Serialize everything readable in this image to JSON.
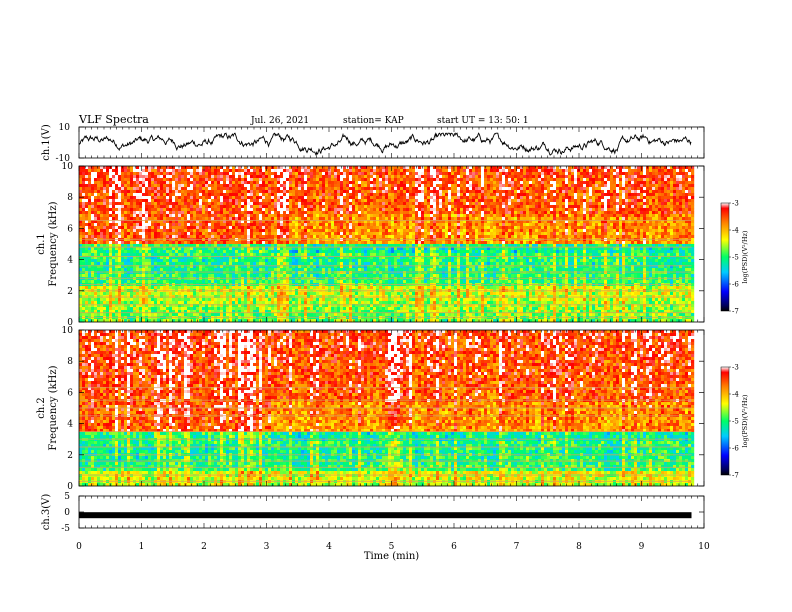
{
  "header": {
    "title": "VLF Spectra",
    "date": "Jul. 26, 2021",
    "station": "station= KAP",
    "start": "start UT =  13: 50: 1"
  },
  "chart_data": [
    {
      "type": "line",
      "panel": "ch1-waveform",
      "ylabel": "ch.1(V)",
      "ylim": [
        -10,
        10
      ],
      "yticks": [
        "10",
        "-10"
      ],
      "xlim": [
        0,
        10
      ],
      "data_extent_min": [
        0,
        9.8
      ],
      "amplitude_range_V": [
        -8,
        6
      ]
    },
    {
      "type": "heatmap",
      "panel": "ch1-spectrogram",
      "ylabel": "ch.1",
      "ylabel2": "Frequency (kHz)",
      "ylim": [
        0,
        10
      ],
      "yticks": [
        "0",
        "2",
        "4",
        "6",
        "8",
        "10"
      ],
      "xlim": [
        0,
        10
      ],
      "data_extent_min": [
        0,
        9.8
      ],
      "color_scale": {
        "label": "log(PSD)(V²/Hz)",
        "range": [
          -7,
          -3
        ],
        "ticks": [
          "-3",
          "-4",
          "-5",
          "-6",
          "-7"
        ]
      },
      "features": {
        "regime_change_min": 3.05,
        "low_psd_band_khz": [
          2.5,
          5.0
        ],
        "interference_lines_khz": [
          0.3,
          0.6,
          1.1,
          1.6,
          2.0,
          2.4,
          2.8,
          3.2,
          3.6,
          4.2,
          4.8,
          5.3,
          6.5
        ]
      }
    },
    {
      "type": "heatmap",
      "panel": "ch2-spectrogram",
      "ylabel": "ch.2",
      "ylabel2": "Frequency (kHz)",
      "ylim": [
        0,
        10
      ],
      "yticks": [
        "0",
        "2",
        "4",
        "6",
        "8",
        "10"
      ],
      "xlim": [
        0,
        10
      ],
      "data_extent_min": [
        0,
        9.8
      ],
      "color_scale": {
        "label": "log(PSD)(V²/Hz)",
        "range": [
          -7,
          -3
        ],
        "ticks": [
          "-3",
          "-4",
          "-5",
          "-6",
          "-7"
        ]
      },
      "features": {
        "regime_change_min": 3.05,
        "low_psd_band_khz": [
          1.0,
          3.5
        ],
        "interference_lines_khz": [
          0.3,
          0.7,
          1.2,
          1.6,
          2.0,
          2.5,
          3.0,
          3.5,
          4.5,
          5.0,
          5.5,
          6.3
        ]
      }
    },
    {
      "type": "line",
      "panel": "ch3-waveform",
      "ylabel": "ch.3(V)",
      "ylim": [
        -5,
        5
      ],
      "yticks": [
        "5",
        "0",
        "-5"
      ],
      "xlim": [
        0,
        10
      ],
      "data_extent_min": [
        0,
        9.8
      ],
      "level_V": -1.0
    }
  ],
  "xaxis": {
    "label": "Time (min)",
    "ticks": [
      "0",
      "1",
      "2",
      "3",
      "4",
      "5",
      "6",
      "7",
      "8",
      "9",
      "10"
    ]
  }
}
